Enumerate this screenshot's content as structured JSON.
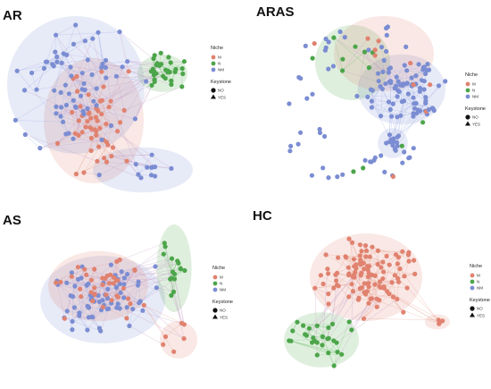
{
  "colors": {
    "M": "#E0826F",
    "N": "#4CA54A",
    "NM": "#7B8DD2",
    "edge_M": "#E9A89A",
    "edge_N": "#7CC57A",
    "edge_NM": "#A9B5E6",
    "edge_mixed": "#C7A5C9",
    "keystone": "#111111"
  },
  "legend": {
    "niche_title": "Niche",
    "niche_items": [
      "M",
      "N",
      "NM"
    ],
    "keystone_title": "Keystone",
    "keystone_items": [
      "NO",
      "YES"
    ]
  },
  "panels": [
    {
      "id": "ar",
      "title": "AR"
    },
    {
      "id": "aras",
      "title": "ARAS"
    },
    {
      "id": "as",
      "title": "AS"
    },
    {
      "id": "hc",
      "title": "HC"
    }
  ]
}
